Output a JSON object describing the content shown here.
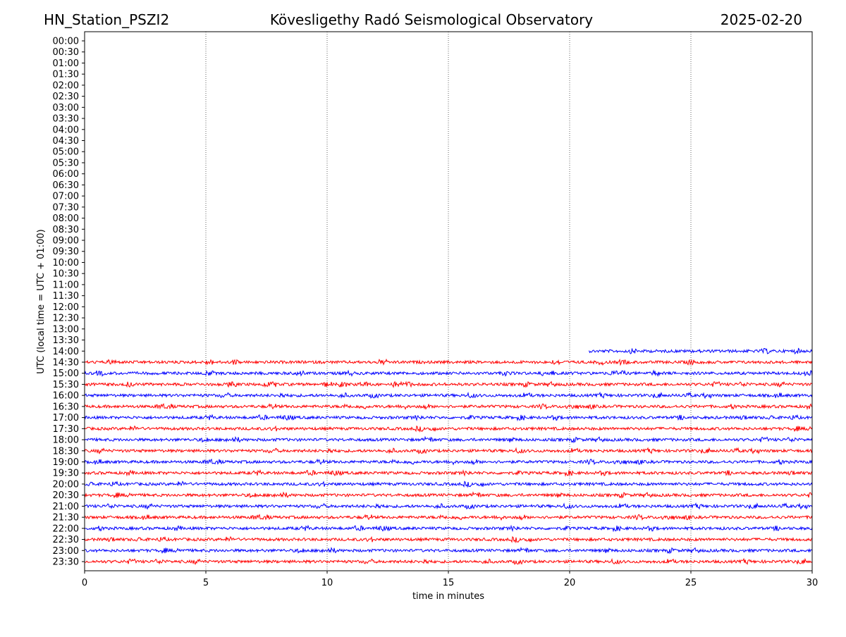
{
  "chart_data": {
    "type": "line",
    "title_left": "HN_Station_PSZI2",
    "title": "Kövesligethy Radó Seismological Observatory",
    "title_right": "2025-02-20",
    "xlabel": "time in minutes",
    "ylabel": "UTC (local time = UTC + 01:00)",
    "xlim": [
      0,
      30
    ],
    "xticks": [
      0,
      5,
      10,
      15,
      20,
      25,
      30
    ],
    "grid": "vertical dotted at x ticks",
    "row_labels": [
      "00:00",
      "00:30",
      "01:00",
      "01:30",
      "02:00",
      "02:30",
      "03:00",
      "03:30",
      "04:00",
      "04:30",
      "05:00",
      "05:30",
      "06:00",
      "06:30",
      "07:00",
      "07:30",
      "08:00",
      "08:30",
      "09:00",
      "09:30",
      "10:00",
      "10:30",
      "11:00",
      "11:30",
      "12:00",
      "12:30",
      "13:00",
      "13:30",
      "14:00",
      "14:30",
      "15:00",
      "15:30",
      "16:00",
      "16:30",
      "17:00",
      "17:30",
      "18:00",
      "18:30",
      "19:00",
      "19:30",
      "20:00",
      "20:30",
      "21:00",
      "21:30",
      "22:00",
      "22:30",
      "23:00",
      "23:30"
    ],
    "first_data_row": "14:00",
    "first_row_start_minute": 20.8,
    "colors": {
      "even_row": "#0000ff",
      "odd_row": "#ff0000",
      "grid": "#000000"
    }
  }
}
